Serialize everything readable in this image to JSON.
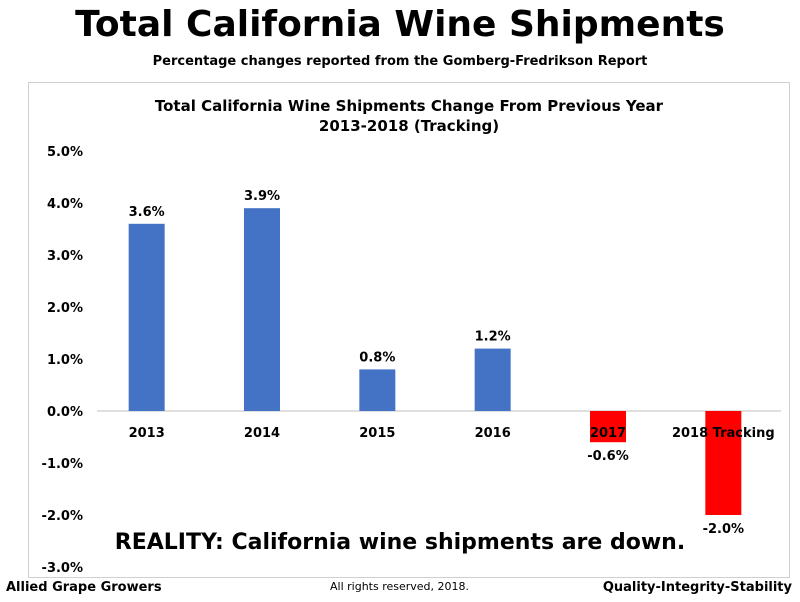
{
  "header": {
    "title": "Total California Wine Shipments",
    "subtitle": "Percentage changes reported from the Gomberg-Fredrikson Report"
  },
  "annotation": "REALITY:  California wine shipments are down.",
  "footer": {
    "left": "Allied Grape Growers",
    "center": "All rights reserved, 2018.",
    "right": "Quality-Integrity-Stability"
  },
  "colors": {
    "positive": "#4472C4",
    "negative": "#FF0000"
  },
  "chart_data": {
    "type": "bar",
    "title": "Total California Wine Shipments Change From Previous Year",
    "subtitle": "2013-2018 (Tracking)",
    "categories": [
      "2013",
      "2014",
      "2015",
      "2016",
      "2017",
      "2018 Tracking"
    ],
    "values": [
      3.6,
      3.9,
      0.8,
      1.2,
      -0.6,
      -2.0
    ],
    "data_labels": [
      "3.6%",
      "3.9%",
      "0.8%",
      "1.2%",
      "-0.6%",
      "-2.0%"
    ],
    "ylim": [
      -3.0,
      5.0
    ],
    "yticks": [
      5.0,
      4.0,
      3.0,
      2.0,
      1.0,
      0.0,
      -1.0,
      -2.0,
      -3.0
    ],
    "ytick_labels": [
      "5.0%",
      "4.0%",
      "3.0%",
      "2.0%",
      "1.0%",
      "0.0%",
      "-1.0%",
      "-2.0%",
      "-3.0%"
    ],
    "xlabel": "",
    "ylabel": "",
    "grid": false
  }
}
